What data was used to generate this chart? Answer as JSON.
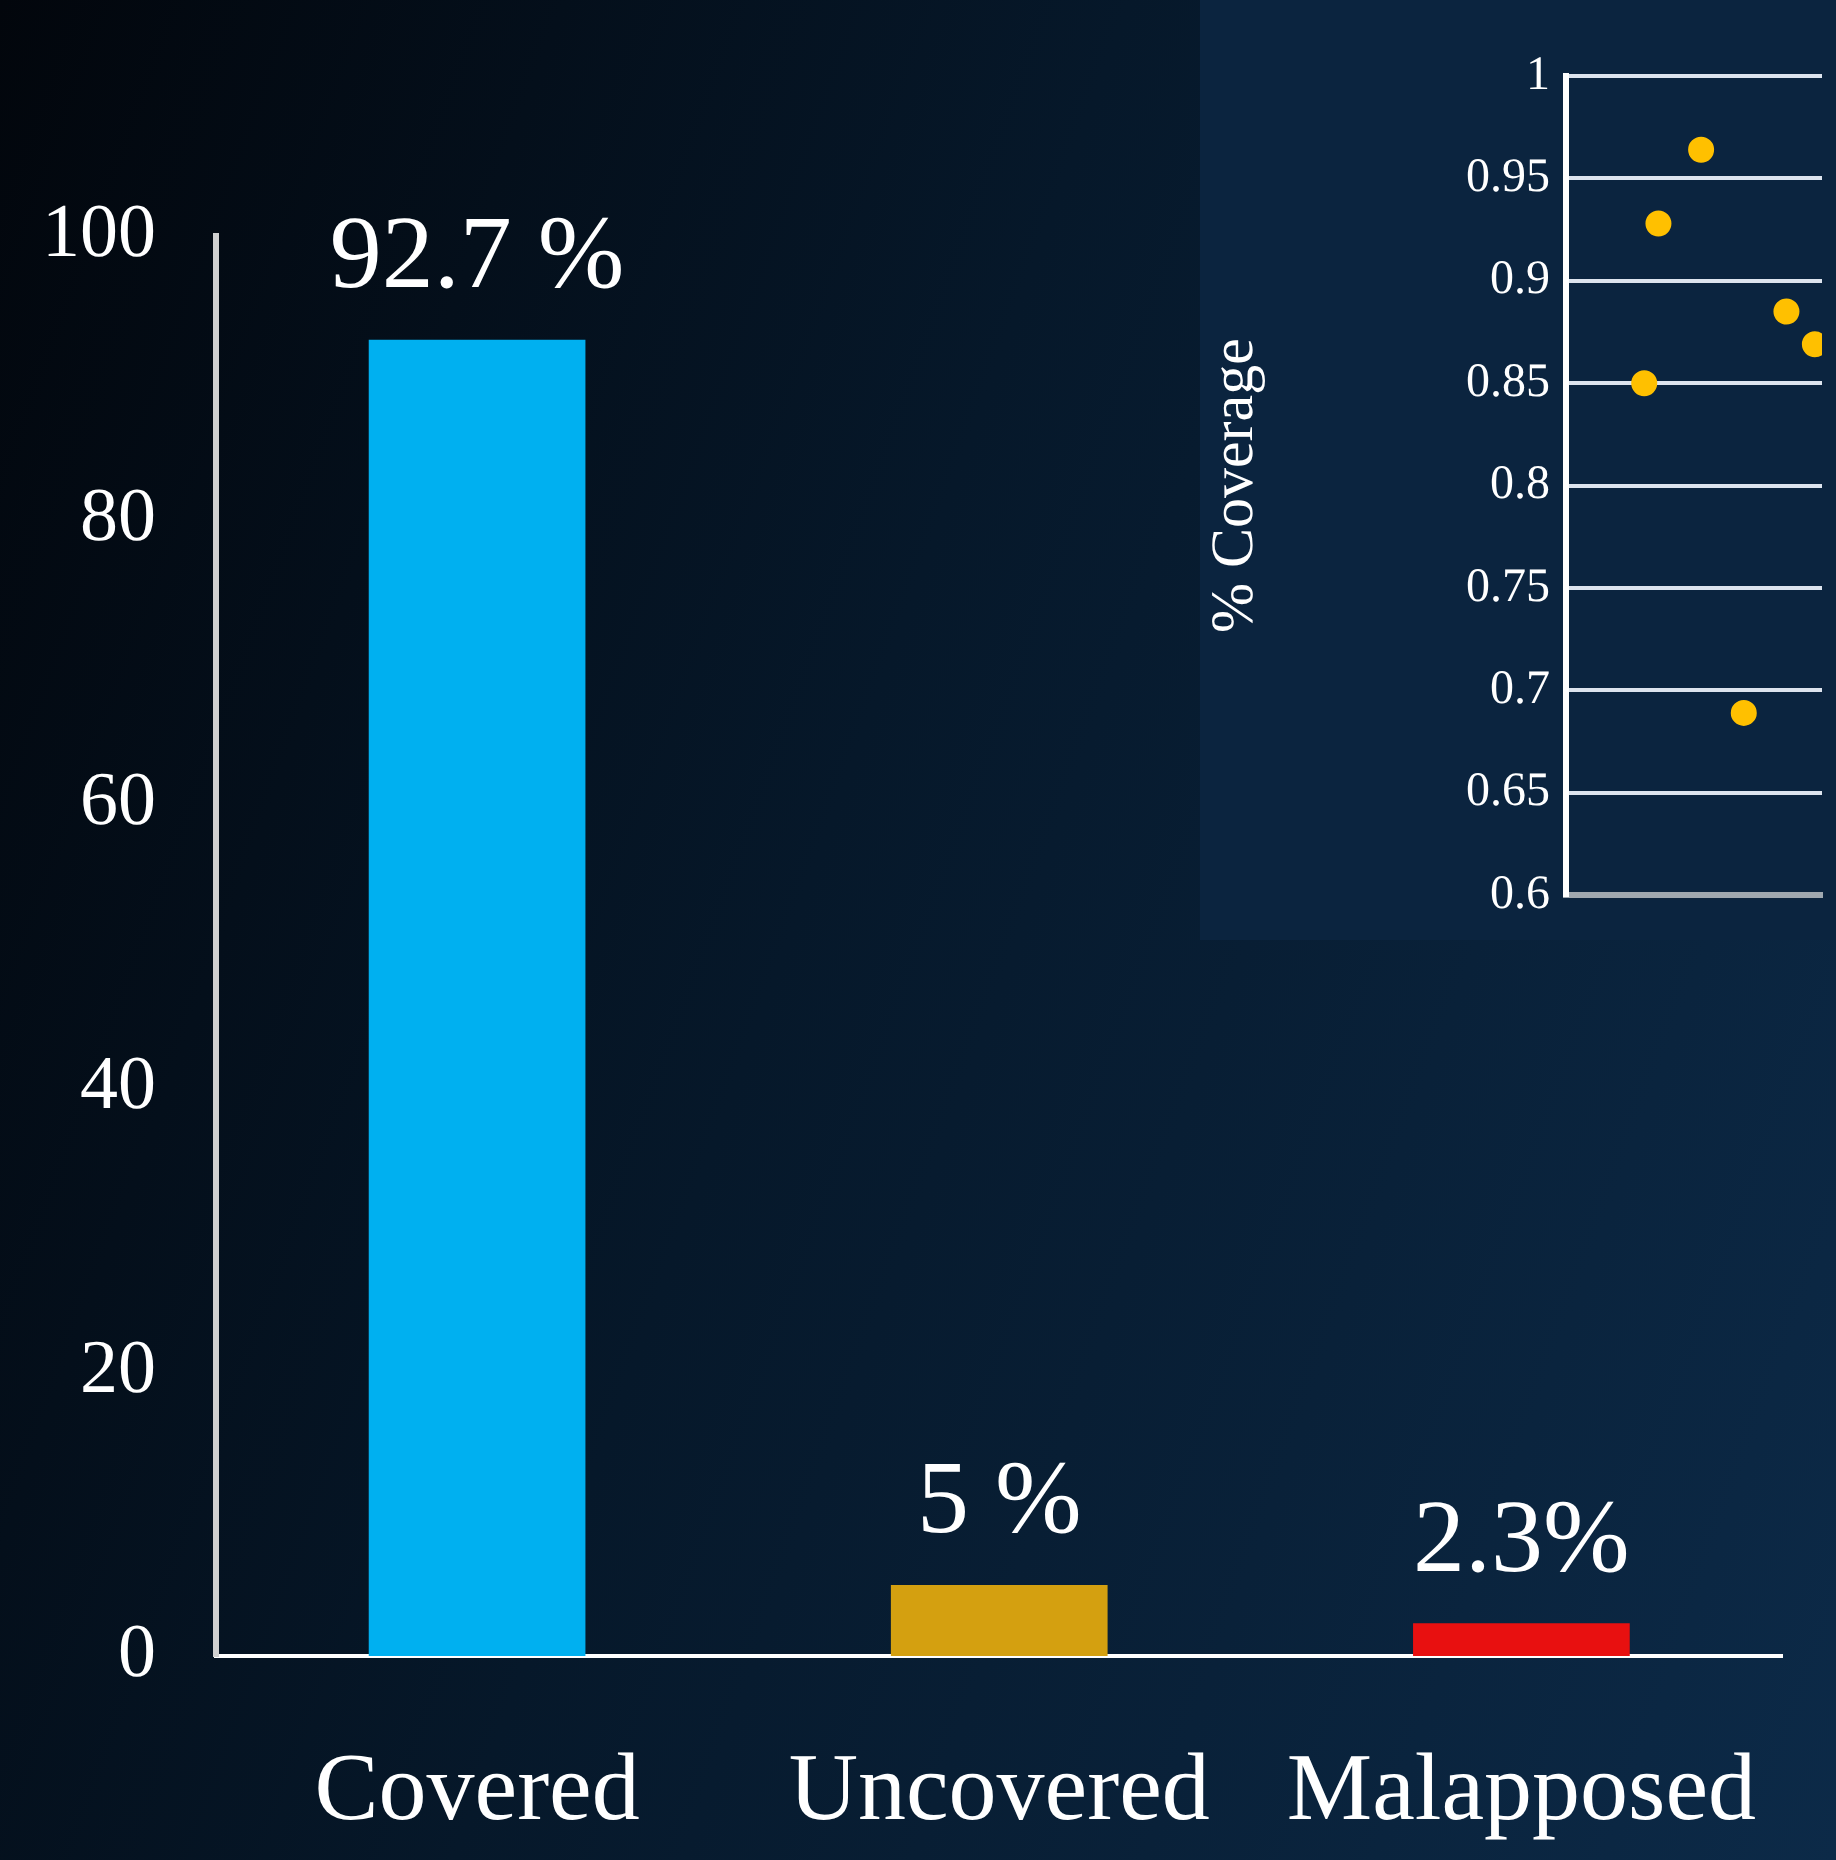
{
  "chart_data": [
    {
      "type": "bar",
      "categories": [
        "Covered",
        "Uncovered",
        "Malapposed"
      ],
      "values": [
        92.7,
        5,
        2.3
      ],
      "colors": [
        "#00b0f0",
        "#d4a010",
        "#e81010"
      ],
      "value_labels": [
        "92.7 %",
        "5 %",
        "2.3%"
      ],
      "ylim": [
        0,
        100
      ],
      "yticks": [
        0,
        20,
        40,
        60,
        80,
        100
      ],
      "grid": false
    },
    {
      "type": "scatter",
      "ylabel": "% Coverage",
      "categories": [
        null,
        null,
        null,
        null,
        null,
        null,
        null,
        null,
        null,
        null,
        null,
        null,
        null,
        null,
        null,
        null,
        null,
        null
      ],
      "series": [
        {
          "color": "#ffc000",
          "values": [
            null,
            null,
            null,
            null,
            null,
            0.85,
            0.928,
            null,
            null,
            0.964,
            null,
            null,
            0.689,
            null,
            null,
            0.885,
            null,
            0.869
          ]
        }
      ],
      "ylim": [
        0.6,
        1
      ],
      "yticks": [
        0.6,
        0.65,
        0.7,
        0.75,
        0.8,
        0.85,
        0.9,
        0.95,
        1
      ],
      "grid": "y",
      "tick_labels": "y",
      "marker": "circle"
    }
  ]
}
